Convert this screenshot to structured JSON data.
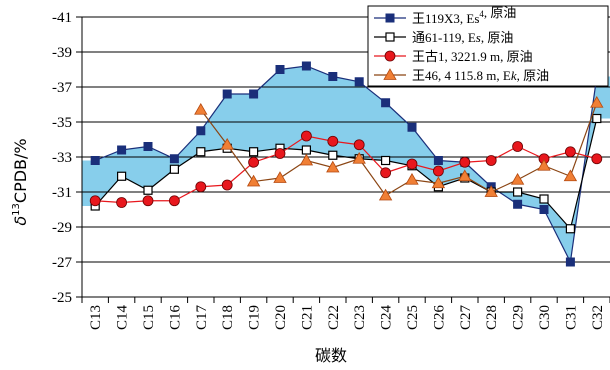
{
  "chart_data": {
    "type": "line",
    "xlabel": "碳数",
    "ylabel": "δ¹³CPDB/%",
    "ylabel_parts": {
      "delta": "δ",
      "sup": "13",
      "rest": "CPDB/%"
    },
    "ylim": [
      -25,
      -41
    ],
    "yticks": [
      "-41",
      "-39",
      "-37",
      "-35",
      "-33",
      "-31",
      "-29",
      "-27",
      "-25"
    ],
    "ytick_values": [
      -41,
      -39,
      -37,
      -35,
      -33,
      -31,
      -29,
      -27,
      -25
    ],
    "grid": true,
    "legend_position": "top-right",
    "categories": [
      "C13",
      "C14",
      "C15",
      "C16",
      "C17",
      "C18",
      "C19",
      "C20",
      "C21",
      "C22",
      "C23",
      "C24",
      "C25",
      "C26",
      "C27",
      "C28",
      "C29",
      "C30",
      "C31",
      "C32"
    ],
    "band": {
      "color": "#87ceeb"
    },
    "series": [
      {
        "name": "王119X3, Es⁴, 原油",
        "legend_parts": [
          [
            "王119X3, Es",
            "normal"
          ],
          [
            "4",
            "sup"
          ],
          [
            ", 原油",
            "normal"
          ]
        ],
        "marker": "square-filled",
        "color": "#1f3a93",
        "values": [
          -32.8,
          -33.4,
          -33.6,
          -32.9,
          -34.5,
          -36.6,
          -36.6,
          -38.0,
          -38.2,
          -37.6,
          -37.3,
          -36.1,
          -34.7,
          -32.8,
          -32.7,
          -31.3,
          -30.3,
          -30.0,
          -27.0,
          -37.6
        ]
      },
      {
        "name": "通61-119, Es, 原油",
        "legend_parts": [
          [
            "通61-119, E",
            "normal"
          ],
          [
            "s",
            "italic"
          ],
          [
            ", 原油",
            "normal"
          ]
        ],
        "marker": "square-open",
        "color": "#000000",
        "values": [
          -30.2,
          -31.9,
          -31.1,
          -32.3,
          -33.3,
          -33.5,
          -33.3,
          -33.5,
          -33.4,
          -33.1,
          -32.9,
          -32.8,
          -32.5,
          -31.3,
          -31.8,
          -31.0,
          -31.0,
          -30.6,
          -28.9,
          -35.2
        ]
      },
      {
        "name": "王古1, 3221.9 m, 原油",
        "legend_parts": [
          [
            "王古1, 3221.9 m, 原油",
            "normal"
          ]
        ],
        "marker": "circle",
        "color": "#e8171d",
        "values": [
          -30.5,
          -30.4,
          -30.5,
          -30.5,
          -31.3,
          -31.4,
          -32.7,
          -33.2,
          -34.2,
          -33.9,
          -33.7,
          -32.1,
          -32.6,
          -32.2,
          -32.7,
          -32.8,
          -33.6,
          -32.9,
          -33.3,
          -32.9
        ]
      },
      {
        "name": "王46, 4 115.8 m, Ek, 原油",
        "legend_parts": [
          [
            "王46, 4 115.8 m, E",
            "normal"
          ],
          [
            "k",
            "italic"
          ],
          [
            ", 原油",
            "normal"
          ]
        ],
        "marker": "triangle",
        "color": "#f07f35",
        "values": [
          null,
          null,
          null,
          null,
          -35.7,
          -33.7,
          -31.6,
          -31.8,
          -32.8,
          -32.4,
          -32.9,
          -30.8,
          -31.7,
          -31.5,
          -31.9,
          -31.0,
          -31.7,
          -32.5,
          -31.9,
          -36.1
        ]
      }
    ]
  }
}
